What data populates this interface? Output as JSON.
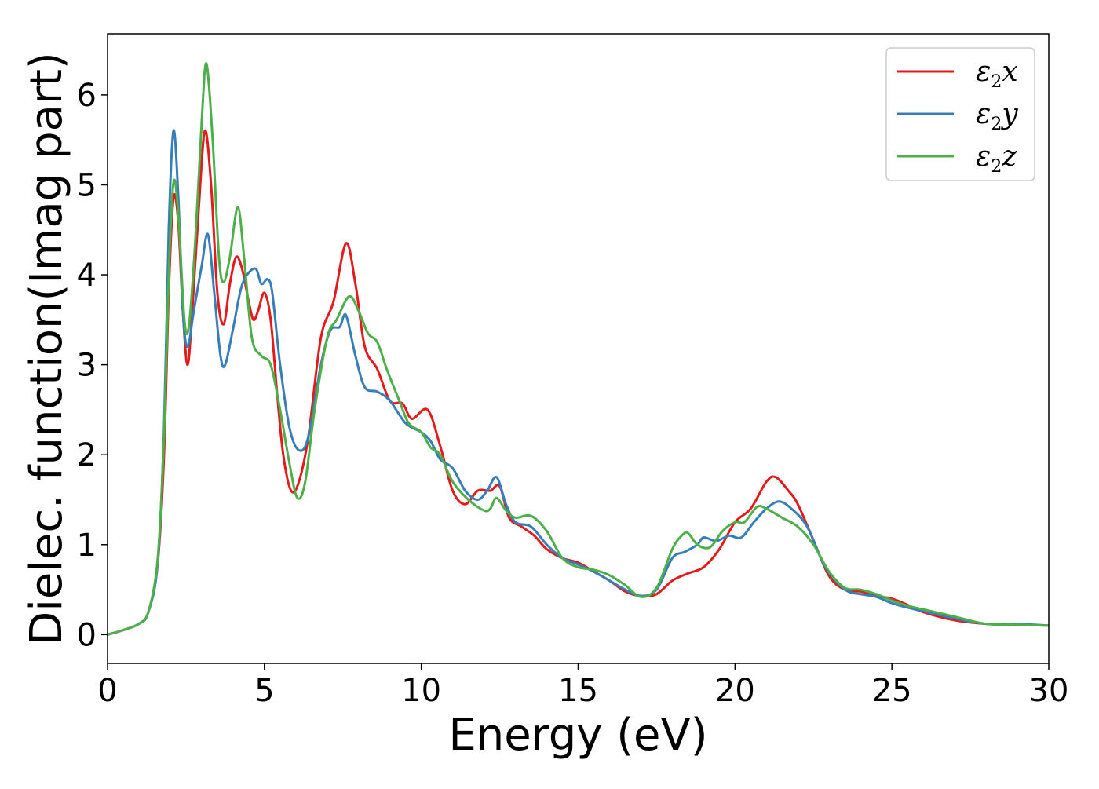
{
  "chart_data": {
    "type": "line",
    "title": "",
    "xlabel": "Energy (eV)",
    "ylabel": "Dielec. function(Imag part)",
    "xlim": [
      0,
      30
    ],
    "ylim": [
      -0.32,
      6.68
    ],
    "xticks": [
      0,
      5,
      10,
      15,
      20,
      25,
      30
    ],
    "yticks": [
      0,
      1,
      2,
      3,
      4,
      5,
      6
    ],
    "grid": false,
    "legend_position": "top-right",
    "series": [
      {
        "name": "ε₂x",
        "legend_base": "ε",
        "legend_sub": "2",
        "legend_var": "x",
        "color": "#e41a1c",
        "points": [
          [
            0,
            0
          ],
          [
            0.5,
            0.05
          ],
          [
            1.0,
            0.12
          ],
          [
            1.3,
            0.25
          ],
          [
            1.6,
            0.8
          ],
          [
            1.8,
            2.0
          ],
          [
            1.95,
            3.8
          ],
          [
            2.1,
            4.85
          ],
          [
            2.25,
            4.6
          ],
          [
            2.4,
            3.6
          ],
          [
            2.55,
            3.0
          ],
          [
            2.7,
            3.6
          ],
          [
            2.9,
            4.7
          ],
          [
            3.1,
            5.6
          ],
          [
            3.3,
            5.0
          ],
          [
            3.5,
            3.8
          ],
          [
            3.7,
            3.45
          ],
          [
            3.9,
            3.9
          ],
          [
            4.1,
            4.2
          ],
          [
            4.3,
            4.05
          ],
          [
            4.5,
            3.7
          ],
          [
            4.65,
            3.5
          ],
          [
            4.8,
            3.6
          ],
          [
            5.0,
            3.8
          ],
          [
            5.2,
            3.5
          ],
          [
            5.4,
            2.7
          ],
          [
            5.6,
            2.0
          ],
          [
            5.85,
            1.6
          ],
          [
            6.1,
            1.7
          ],
          [
            6.4,
            2.2
          ],
          [
            6.8,
            3.3
          ],
          [
            7.2,
            3.7
          ],
          [
            7.6,
            4.35
          ],
          [
            7.9,
            3.9
          ],
          [
            8.2,
            3.2
          ],
          [
            8.6,
            2.95
          ],
          [
            9.0,
            2.6
          ],
          [
            9.4,
            2.57
          ],
          [
            9.7,
            2.4
          ],
          [
            10.2,
            2.5
          ],
          [
            10.6,
            2.1
          ],
          [
            11.0,
            1.6
          ],
          [
            11.4,
            1.45
          ],
          [
            11.8,
            1.6
          ],
          [
            12.2,
            1.6
          ],
          [
            12.5,
            1.65
          ],
          [
            12.8,
            1.3
          ],
          [
            13.2,
            1.2
          ],
          [
            13.6,
            1.1
          ],
          [
            14.0,
            0.95
          ],
          [
            14.5,
            0.85
          ],
          [
            15.0,
            0.8
          ],
          [
            15.5,
            0.7
          ],
          [
            16.0,
            0.6
          ],
          [
            16.5,
            0.48
          ],
          [
            17.0,
            0.43
          ],
          [
            17.5,
            0.45
          ],
          [
            18.0,
            0.6
          ],
          [
            18.5,
            0.68
          ],
          [
            19.0,
            0.75
          ],
          [
            19.5,
            0.95
          ],
          [
            20.0,
            1.25
          ],
          [
            20.5,
            1.4
          ],
          [
            21.0,
            1.7
          ],
          [
            21.3,
            1.75
          ],
          [
            21.7,
            1.6
          ],
          [
            22.0,
            1.45
          ],
          [
            22.5,
            1.05
          ],
          [
            23.0,
            0.65
          ],
          [
            23.5,
            0.5
          ],
          [
            24.0,
            0.48
          ],
          [
            24.5,
            0.43
          ],
          [
            25.0,
            0.4
          ],
          [
            25.5,
            0.33
          ],
          [
            26.0,
            0.25
          ],
          [
            27.0,
            0.16
          ],
          [
            28.0,
            0.12
          ],
          [
            29.0,
            0.11
          ],
          [
            30.0,
            0.1
          ]
        ]
      },
      {
        "name": "ε₂y",
        "legend_base": "ε",
        "legend_sub": "2",
        "legend_var": "y",
        "color": "#377eb8",
        "points": [
          [
            0,
            0
          ],
          [
            0.5,
            0.05
          ],
          [
            1.0,
            0.12
          ],
          [
            1.3,
            0.25
          ],
          [
            1.6,
            0.8
          ],
          [
            1.8,
            2.3
          ],
          [
            1.95,
            4.5
          ],
          [
            2.1,
            5.6
          ],
          [
            2.25,
            4.9
          ],
          [
            2.4,
            3.6
          ],
          [
            2.55,
            3.2
          ],
          [
            2.75,
            3.6
          ],
          [
            3.0,
            4.1
          ],
          [
            3.2,
            4.45
          ],
          [
            3.4,
            3.8
          ],
          [
            3.6,
            3.1
          ],
          [
            3.75,
            3.0
          ],
          [
            4.0,
            3.4
          ],
          [
            4.3,
            3.9
          ],
          [
            4.7,
            4.07
          ],
          [
            4.9,
            3.9
          ],
          [
            5.1,
            3.95
          ],
          [
            5.25,
            3.8
          ],
          [
            5.5,
            3.0
          ],
          [
            5.8,
            2.3
          ],
          [
            6.1,
            2.05
          ],
          [
            6.4,
            2.2
          ],
          [
            6.8,
            3.0
          ],
          [
            7.1,
            3.38
          ],
          [
            7.4,
            3.42
          ],
          [
            7.6,
            3.55
          ],
          [
            7.9,
            3.1
          ],
          [
            8.2,
            2.75
          ],
          [
            8.6,
            2.7
          ],
          [
            9.0,
            2.6
          ],
          [
            9.5,
            2.35
          ],
          [
            10.0,
            2.25
          ],
          [
            10.3,
            2.15
          ],
          [
            10.6,
            1.95
          ],
          [
            11.0,
            1.85
          ],
          [
            11.4,
            1.6
          ],
          [
            11.8,
            1.5
          ],
          [
            12.1,
            1.6
          ],
          [
            12.4,
            1.75
          ],
          [
            12.7,
            1.45
          ],
          [
            13.0,
            1.25
          ],
          [
            13.5,
            1.2
          ],
          [
            14.0,
            1.0
          ],
          [
            14.5,
            0.85
          ],
          [
            15.0,
            0.78
          ],
          [
            15.5,
            0.7
          ],
          [
            16.0,
            0.6
          ],
          [
            16.5,
            0.5
          ],
          [
            17.0,
            0.43
          ],
          [
            17.5,
            0.5
          ],
          [
            18.0,
            0.85
          ],
          [
            18.4,
            0.92
          ],
          [
            18.8,
            1.0
          ],
          [
            19.0,
            1.08
          ],
          [
            19.4,
            1.04
          ],
          [
            19.8,
            1.1
          ],
          [
            20.2,
            1.08
          ],
          [
            20.6,
            1.25
          ],
          [
            21.0,
            1.4
          ],
          [
            21.4,
            1.48
          ],
          [
            21.8,
            1.4
          ],
          [
            22.3,
            1.2
          ],
          [
            22.8,
            0.8
          ],
          [
            23.2,
            0.6
          ],
          [
            23.6,
            0.48
          ],
          [
            24.0,
            0.45
          ],
          [
            24.5,
            0.42
          ],
          [
            25.0,
            0.35
          ],
          [
            25.5,
            0.3
          ],
          [
            26.0,
            0.26
          ],
          [
            27.0,
            0.18
          ],
          [
            28.0,
            0.12
          ],
          [
            29.0,
            0.12
          ],
          [
            30.0,
            0.1
          ]
        ]
      },
      {
        "name": "ε₂z",
        "legend_base": "ε",
        "legend_sub": "2",
        "legend_var": "z",
        "color": "#4daf4a",
        "points": [
          [
            0,
            0
          ],
          [
            0.5,
            0.05
          ],
          [
            1.0,
            0.12
          ],
          [
            1.3,
            0.25
          ],
          [
            1.6,
            0.85
          ],
          [
            1.8,
            2.2
          ],
          [
            1.95,
            4.0
          ],
          [
            2.1,
            5.02
          ],
          [
            2.25,
            4.7
          ],
          [
            2.45,
            3.5
          ],
          [
            2.6,
            3.45
          ],
          [
            2.8,
            4.4
          ],
          [
            3.0,
            5.7
          ],
          [
            3.15,
            6.35
          ],
          [
            3.35,
            5.5
          ],
          [
            3.55,
            4.2
          ],
          [
            3.7,
            3.92
          ],
          [
            3.9,
            4.2
          ],
          [
            4.15,
            4.75
          ],
          [
            4.35,
            4.2
          ],
          [
            4.6,
            3.3
          ],
          [
            4.9,
            3.1
          ],
          [
            5.2,
            3.0
          ],
          [
            5.5,
            2.5
          ],
          [
            5.8,
            1.9
          ],
          [
            6.05,
            1.52
          ],
          [
            6.3,
            1.7
          ],
          [
            6.6,
            2.5
          ],
          [
            7.0,
            3.3
          ],
          [
            7.3,
            3.5
          ],
          [
            7.7,
            3.76
          ],
          [
            8.0,
            3.6
          ],
          [
            8.3,
            3.35
          ],
          [
            8.6,
            3.25
          ],
          [
            8.9,
            2.95
          ],
          [
            9.3,
            2.6
          ],
          [
            9.6,
            2.35
          ],
          [
            10.0,
            2.25
          ],
          [
            10.3,
            2.08
          ],
          [
            10.6,
            2.0
          ],
          [
            11.0,
            1.7
          ],
          [
            11.5,
            1.5
          ],
          [
            12.0,
            1.38
          ],
          [
            12.2,
            1.4
          ],
          [
            12.4,
            1.52
          ],
          [
            12.7,
            1.38
          ],
          [
            13.0,
            1.3
          ],
          [
            13.5,
            1.32
          ],
          [
            14.0,
            1.15
          ],
          [
            14.5,
            0.85
          ],
          [
            15.0,
            0.75
          ],
          [
            15.5,
            0.72
          ],
          [
            16.0,
            0.66
          ],
          [
            16.5,
            0.55
          ],
          [
            17.0,
            0.42
          ],
          [
            17.5,
            0.52
          ],
          [
            18.0,
            0.95
          ],
          [
            18.3,
            1.1
          ],
          [
            18.5,
            1.13
          ],
          [
            18.8,
            1.0
          ],
          [
            19.2,
            0.97
          ],
          [
            19.6,
            1.15
          ],
          [
            20.0,
            1.25
          ],
          [
            20.3,
            1.25
          ],
          [
            20.7,
            1.42
          ],
          [
            21.0,
            1.4
          ],
          [
            21.5,
            1.3
          ],
          [
            22.0,
            1.2
          ],
          [
            22.5,
            1.0
          ],
          [
            23.0,
            0.7
          ],
          [
            23.5,
            0.52
          ],
          [
            24.0,
            0.5
          ],
          [
            24.5,
            0.45
          ],
          [
            25.0,
            0.38
          ],
          [
            25.5,
            0.32
          ],
          [
            26.0,
            0.28
          ],
          [
            27.0,
            0.2
          ],
          [
            28.0,
            0.12
          ],
          [
            29.0,
            0.11
          ],
          [
            30.0,
            0.1
          ]
        ]
      }
    ]
  }
}
